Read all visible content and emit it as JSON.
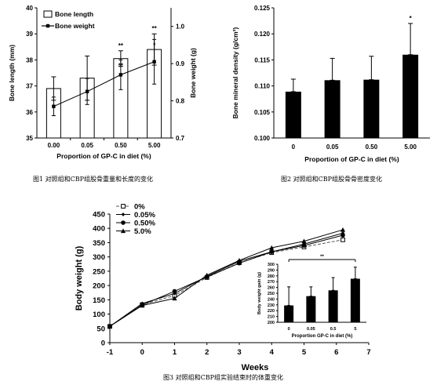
{
  "colors": {
    "ink": "#000000",
    "bar_fill": "#000000",
    "open_fill": "#ffffff",
    "dash": "#555555"
  },
  "fig1": {
    "caption": "图1 对照组和CBP组股骨重量和长度的变化",
    "chart_data": {
      "type": "bar",
      "categories": [
        "0.00",
        "0.05",
        "0.50",
        "5.00"
      ],
      "xlabel": "Proportion of GP-C in diet (%)",
      "ylabel": "Bone length (mm)",
      "y2label": "Bone weight (g)",
      "ylim": [
        35,
        40
      ],
      "y2lim": [
        0.7,
        1.05
      ],
      "yticks": [
        "35",
        "36",
        "37",
        "38",
        "39",
        "40"
      ],
      "y2ticks": [
        "0.7",
        "0.8",
        "0.9",
        "1.0"
      ],
      "legend_position": "top-left",
      "series": [
        {
          "name": "Bone length",
          "kind": "bar",
          "values": [
            36.9,
            37.3,
            38.05,
            38.4
          ],
          "err": [
            0.45,
            0.85,
            0.3,
            0.6
          ],
          "marks": [
            "",
            "",
            "**",
            "**"
          ]
        },
        {
          "name": "Bone weight",
          "kind": "line",
          "axis": "right",
          "values": [
            0.785,
            0.825,
            0.87,
            0.905
          ],
          "err": [
            0.025,
            0.035,
            0.04,
            0.06
          ],
          "marks": [
            "",
            "",
            "**",
            "*"
          ]
        }
      ]
    }
  },
  "fig2": {
    "caption": "图2 对照组和CBP组股骨骨密度变化",
    "chart_data": {
      "type": "bar",
      "categories": [
        "0",
        "0.05",
        "0.50",
        "5.00"
      ],
      "xlabel": "Proportion of GP-C in diet (%)",
      "ylabel": "Bone mineral density (g/cm³)",
      "ylim": [
        0.1,
        0.125
      ],
      "yticks": [
        "0.100",
        "0.105",
        "0.110",
        "0.115",
        "0.120",
        "0.125"
      ],
      "series": [
        {
          "values": [
            0.1089,
            0.1111,
            0.1112,
            0.116
          ],
          "err": [
            0.0024,
            0.0042,
            0.0045,
            0.006
          ],
          "marks": [
            "",
            "",
            "",
            "*"
          ]
        }
      ]
    }
  },
  "fig3": {
    "caption": "图3 对照组和CBP组实验结束时的体重变化",
    "chart_data": {
      "type": "line",
      "x": [
        -1,
        0,
        1,
        2,
        3,
        4,
        5,
        6
      ],
      "xlabel": "Weeks",
      "ylabel": "Body weight (g)",
      "xlim": [
        -1,
        7
      ],
      "ylim": [
        0,
        450
      ],
      "xticks": [
        "-1",
        "0",
        "1",
        "2",
        "3",
        "4",
        "5",
        "6",
        "7"
      ],
      "yticks": [
        "0",
        "50",
        "100",
        "150",
        "200",
        "250",
        "300",
        "350",
        "400",
        "450"
      ],
      "legend_position": "top-left",
      "series": [
        {
          "name": "0%",
          "x": [
            -1,
            0,
            1,
            2,
            3,
            4,
            5,
            6.2
          ],
          "values": [
            57,
            133,
            165,
            228,
            280,
            315,
            335,
            360
          ]
        },
        {
          "name": "0.05%",
          "x": [
            -1,
            0,
            1,
            2,
            3,
            4,
            5,
            6.2
          ],
          "values": [
            57,
            137,
            172,
            232,
            285,
            318,
            345,
            383
          ]
        },
        {
          "name": "0.50%",
          "x": [
            -1,
            0,
            1,
            2,
            3,
            4,
            5,
            6.2
          ],
          "values": [
            57,
            132,
            180,
            230,
            278,
            318,
            340,
            376
          ]
        },
        {
          "name": "5.0%",
          "x": [
            -1,
            0,
            1,
            2,
            3,
            4,
            5,
            6.2
          ],
          "values": [
            57,
            130,
            155,
            236,
            288,
            332,
            355,
            395
          ]
        }
      ],
      "inset": {
        "type": "bar",
        "categories": [
          "0",
          "0.05",
          "0.5",
          "5"
        ],
        "xlabel": "Proportion GP-C in diet (%)",
        "ylabel": "Body weight gain (g)",
        "ylim": [
          200,
          300
        ],
        "yticks": [
          "200",
          "210",
          "220",
          "230",
          "240",
          "250",
          "260",
          "270",
          "280",
          "290",
          "300"
        ],
        "values": [
          229,
          245,
          255,
          275
        ],
        "err": [
          32,
          16,
          22,
          20
        ],
        "annotation": "**"
      }
    }
  }
}
